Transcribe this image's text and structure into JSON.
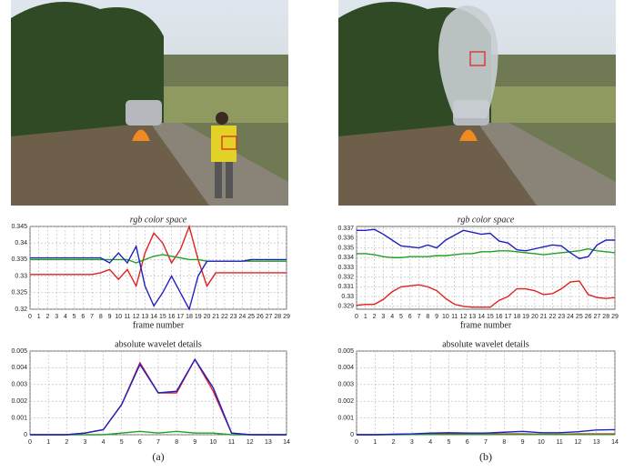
{
  "chart_data": [
    {
      "type": "line",
      "title": "rgb color space",
      "xlabel": "frame number",
      "x": [
        0,
        1,
        2,
        3,
        4,
        5,
        6,
        7,
        8,
        9,
        10,
        11,
        12,
        13,
        14,
        15,
        16,
        17,
        18,
        19,
        20,
        21,
        22,
        23,
        24,
        25,
        26,
        27,
        28,
        29
      ],
      "xlim": [
        0,
        29
      ],
      "xticks": [
        0,
        1,
        2,
        3,
        4,
        5,
        6,
        7,
        8,
        9,
        10,
        11,
        12,
        13,
        14,
        15,
        16,
        17,
        18,
        19,
        20,
        21,
        22,
        23,
        24,
        25,
        26,
        27,
        28,
        29
      ],
      "ylim": [
        0.32,
        0.345
      ],
      "yticks": [
        0.32,
        0.325,
        0.33,
        0.335,
        0.34,
        0.345
      ],
      "grid": true,
      "series": [
        {
          "color": "#e02020",
          "values": [
            0.3305,
            0.3305,
            0.3305,
            0.3305,
            0.3305,
            0.3305,
            0.3305,
            0.3305,
            0.331,
            0.332,
            0.329,
            0.332,
            0.327,
            0.337,
            0.343,
            0.34,
            0.334,
            0.338,
            0.345,
            0.335,
            0.327,
            0.331,
            0.331,
            0.331,
            0.331,
            0.331,
            0.331,
            0.331,
            0.331,
            0.331
          ]
        },
        {
          "color": "#20a020",
          "values": [
            0.335,
            0.335,
            0.335,
            0.335,
            0.335,
            0.335,
            0.335,
            0.335,
            0.335,
            0.335,
            0.335,
            0.335,
            0.334,
            0.335,
            0.336,
            0.3365,
            0.336,
            0.3355,
            0.335,
            0.335,
            0.3345,
            0.3345,
            0.3345,
            0.3345,
            0.3345,
            0.3345,
            0.3345,
            0.3345,
            0.3345,
            0.3345
          ]
        },
        {
          "color": "#2020c0",
          "values": [
            0.3355,
            0.3355,
            0.3355,
            0.3355,
            0.3355,
            0.3355,
            0.3355,
            0.3355,
            0.3355,
            0.334,
            0.337,
            0.334,
            0.339,
            0.327,
            0.321,
            0.325,
            0.33,
            0.325,
            0.32,
            0.33,
            0.3345,
            0.3345,
            0.3345,
            0.3345,
            0.3345,
            0.335,
            0.335,
            0.335,
            0.335,
            0.335
          ]
        }
      ]
    },
    {
      "type": "line",
      "title": "absolute wavelet details",
      "x": [
        0,
        1,
        2,
        3,
        4,
        5,
        6,
        7,
        8,
        9,
        10,
        11,
        12,
        13,
        14
      ],
      "xlim": [
        0,
        14
      ],
      "xticks": [
        0,
        1,
        2,
        3,
        4,
        5,
        6,
        7,
        8,
        9,
        10,
        11,
        12,
        13,
        14
      ],
      "ylim": [
        0,
        0.005
      ],
      "yticks": [
        0,
        0.001,
        0.002,
        0.003,
        0.004,
        0.005
      ],
      "grid": true,
      "series": [
        {
          "color": "#e02020",
          "values": [
            0,
            0,
            0,
            0.0001,
            0.0003,
            0.0018,
            0.0043,
            0.0025,
            0.0025,
            0.0045,
            0.0026,
            0.0001,
            0,
            0,
            0
          ]
        },
        {
          "color": "#20a020",
          "values": [
            0,
            0,
            0,
            0,
            0,
            0.0001,
            0.0002,
            0.0001,
            0.0002,
            0.0001,
            0.0001,
            0,
            0,
            0,
            0
          ]
        },
        {
          "color": "#2020c0",
          "values": [
            0,
            0,
            0,
            0.0001,
            0.0003,
            0.0018,
            0.0042,
            0.0025,
            0.0026,
            0.0045,
            0.0028,
            0.0001,
            0,
            0,
            0
          ]
        }
      ]
    },
    {
      "type": "line",
      "title": "rgb color space",
      "xlabel": "frame number",
      "x": [
        0,
        1,
        2,
        3,
        4,
        5,
        6,
        7,
        8,
        9,
        10,
        11,
        12,
        13,
        14,
        15,
        16,
        17,
        18,
        19,
        20,
        21,
        22,
        23,
        24,
        25,
        26,
        27,
        28,
        29
      ],
      "xlim": [
        0,
        29
      ],
      "xticks": [
        0,
        1,
        2,
        3,
        4,
        5,
        6,
        7,
        8,
        9,
        10,
        11,
        12,
        13,
        14,
        15,
        16,
        17,
        18,
        19,
        20,
        21,
        22,
        23,
        24,
        25,
        26,
        27,
        28,
        29
      ],
      "ylim": [
        0.3287,
        0.3372
      ],
      "yticks": [
        0.329,
        0.33,
        0.331,
        0.332,
        0.333,
        0.334,
        0.335,
        0.336,
        0.337
      ],
      "grid": true,
      "series": [
        {
          "color": "#e02020",
          "values": [
            0.3291,
            0.3292,
            0.3292,
            0.3297,
            0.3305,
            0.331,
            0.3311,
            0.3312,
            0.331,
            0.3306,
            0.3298,
            0.3292,
            0.329,
            0.3289,
            0.3289,
            0.3289,
            0.3296,
            0.33,
            0.3308,
            0.3308,
            0.3306,
            0.3302,
            0.3303,
            0.3308,
            0.3315,
            0.3316,
            0.3302,
            0.3299,
            0.3298,
            0.3299
          ]
        },
        {
          "color": "#20a020",
          "values": [
            0.3344,
            0.3344,
            0.3343,
            0.3341,
            0.334,
            0.334,
            0.3341,
            0.3341,
            0.3341,
            0.3342,
            0.3342,
            0.3343,
            0.3344,
            0.3344,
            0.3346,
            0.3346,
            0.3347,
            0.3347,
            0.3346,
            0.3345,
            0.3344,
            0.3343,
            0.3344,
            0.3345,
            0.3346,
            0.3347,
            0.3349,
            0.3347,
            0.3346,
            0.3345
          ]
        },
        {
          "color": "#2020c0",
          "values": [
            0.3368,
            0.3368,
            0.3369,
            0.3364,
            0.3358,
            0.3352,
            0.3351,
            0.335,
            0.3353,
            0.335,
            0.3358,
            0.3363,
            0.3368,
            0.3366,
            0.3364,
            0.3365,
            0.3357,
            0.3355,
            0.3348,
            0.3347,
            0.3349,
            0.3351,
            0.3353,
            0.3352,
            0.3345,
            0.3339,
            0.3341,
            0.3353,
            0.3358,
            0.3358
          ]
        }
      ]
    },
    {
      "type": "line",
      "title": "absolute wavelet details",
      "x": [
        0,
        1,
        2,
        3,
        4,
        5,
        6,
        7,
        8,
        9,
        10,
        11,
        12,
        13,
        14
      ],
      "xlim": [
        0,
        14
      ],
      "xticks": [
        0,
        1,
        2,
        3,
        4,
        5,
        6,
        7,
        8,
        9,
        10,
        11,
        12,
        13,
        14
      ],
      "ylim": [
        0,
        0.005
      ],
      "yticks": [
        0,
        0.001,
        0.002,
        0.003,
        0.004,
        0.005
      ],
      "grid": true,
      "series": [
        {
          "color": "#e02020",
          "values": [
            0,
            0,
            2e-05,
            3e-05,
            5e-05,
            5e-05,
            5e-05,
            3e-05,
            5e-05,
            5e-05,
            3e-05,
            3e-05,
            5e-05,
            5e-05,
            5e-05
          ]
        },
        {
          "color": "#20a020",
          "values": [
            0,
            0,
            0,
            1e-05,
            1e-05,
            1e-05,
            1e-05,
            1e-05,
            1e-05,
            1e-05,
            1e-05,
            1e-05,
            1e-05,
            1e-05,
            1e-05
          ]
        },
        {
          "color": "#2020c0",
          "values": [
            0,
            0,
            3e-05,
            5e-05,
            0.0001,
            0.00012,
            0.0001,
            0.0001,
            0.00015,
            0.0002,
            0.00012,
            0.00012,
            0.00018,
            0.00028,
            0.0003
          ]
        }
      ]
    }
  ],
  "captions": [
    "(a)",
    "(b)"
  ]
}
